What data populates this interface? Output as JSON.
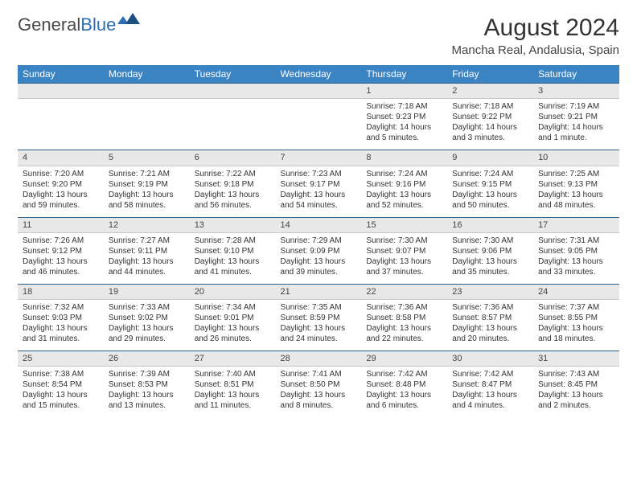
{
  "logo": {
    "general": "General",
    "blue": "Blue"
  },
  "title": "August 2024",
  "location": "Mancha Real, Andalusia, Spain",
  "header_color": "#3b84c4",
  "daynum_bg": "#e8e8e8",
  "row_border": "#2c5e8a",
  "weekdays": [
    "Sunday",
    "Monday",
    "Tuesday",
    "Wednesday",
    "Thursday",
    "Friday",
    "Saturday"
  ],
  "weeks": [
    [
      null,
      null,
      null,
      null,
      {
        "num": "1",
        "sunrise": "Sunrise: 7:18 AM",
        "sunset": "Sunset: 9:23 PM",
        "daylight": "Daylight: 14 hours and 5 minutes."
      },
      {
        "num": "2",
        "sunrise": "Sunrise: 7:18 AM",
        "sunset": "Sunset: 9:22 PM",
        "daylight": "Daylight: 14 hours and 3 minutes."
      },
      {
        "num": "3",
        "sunrise": "Sunrise: 7:19 AM",
        "sunset": "Sunset: 9:21 PM",
        "daylight": "Daylight: 14 hours and 1 minute."
      }
    ],
    [
      {
        "num": "4",
        "sunrise": "Sunrise: 7:20 AM",
        "sunset": "Sunset: 9:20 PM",
        "daylight": "Daylight: 13 hours and 59 minutes."
      },
      {
        "num": "5",
        "sunrise": "Sunrise: 7:21 AM",
        "sunset": "Sunset: 9:19 PM",
        "daylight": "Daylight: 13 hours and 58 minutes."
      },
      {
        "num": "6",
        "sunrise": "Sunrise: 7:22 AM",
        "sunset": "Sunset: 9:18 PM",
        "daylight": "Daylight: 13 hours and 56 minutes."
      },
      {
        "num": "7",
        "sunrise": "Sunrise: 7:23 AM",
        "sunset": "Sunset: 9:17 PM",
        "daylight": "Daylight: 13 hours and 54 minutes."
      },
      {
        "num": "8",
        "sunrise": "Sunrise: 7:24 AM",
        "sunset": "Sunset: 9:16 PM",
        "daylight": "Daylight: 13 hours and 52 minutes."
      },
      {
        "num": "9",
        "sunrise": "Sunrise: 7:24 AM",
        "sunset": "Sunset: 9:15 PM",
        "daylight": "Daylight: 13 hours and 50 minutes."
      },
      {
        "num": "10",
        "sunrise": "Sunrise: 7:25 AM",
        "sunset": "Sunset: 9:13 PM",
        "daylight": "Daylight: 13 hours and 48 minutes."
      }
    ],
    [
      {
        "num": "11",
        "sunrise": "Sunrise: 7:26 AM",
        "sunset": "Sunset: 9:12 PM",
        "daylight": "Daylight: 13 hours and 46 minutes."
      },
      {
        "num": "12",
        "sunrise": "Sunrise: 7:27 AM",
        "sunset": "Sunset: 9:11 PM",
        "daylight": "Daylight: 13 hours and 44 minutes."
      },
      {
        "num": "13",
        "sunrise": "Sunrise: 7:28 AM",
        "sunset": "Sunset: 9:10 PM",
        "daylight": "Daylight: 13 hours and 41 minutes."
      },
      {
        "num": "14",
        "sunrise": "Sunrise: 7:29 AM",
        "sunset": "Sunset: 9:09 PM",
        "daylight": "Daylight: 13 hours and 39 minutes."
      },
      {
        "num": "15",
        "sunrise": "Sunrise: 7:30 AM",
        "sunset": "Sunset: 9:07 PM",
        "daylight": "Daylight: 13 hours and 37 minutes."
      },
      {
        "num": "16",
        "sunrise": "Sunrise: 7:30 AM",
        "sunset": "Sunset: 9:06 PM",
        "daylight": "Daylight: 13 hours and 35 minutes."
      },
      {
        "num": "17",
        "sunrise": "Sunrise: 7:31 AM",
        "sunset": "Sunset: 9:05 PM",
        "daylight": "Daylight: 13 hours and 33 minutes."
      }
    ],
    [
      {
        "num": "18",
        "sunrise": "Sunrise: 7:32 AM",
        "sunset": "Sunset: 9:03 PM",
        "daylight": "Daylight: 13 hours and 31 minutes."
      },
      {
        "num": "19",
        "sunrise": "Sunrise: 7:33 AM",
        "sunset": "Sunset: 9:02 PM",
        "daylight": "Daylight: 13 hours and 29 minutes."
      },
      {
        "num": "20",
        "sunrise": "Sunrise: 7:34 AM",
        "sunset": "Sunset: 9:01 PM",
        "daylight": "Daylight: 13 hours and 26 minutes."
      },
      {
        "num": "21",
        "sunrise": "Sunrise: 7:35 AM",
        "sunset": "Sunset: 8:59 PM",
        "daylight": "Daylight: 13 hours and 24 minutes."
      },
      {
        "num": "22",
        "sunrise": "Sunrise: 7:36 AM",
        "sunset": "Sunset: 8:58 PM",
        "daylight": "Daylight: 13 hours and 22 minutes."
      },
      {
        "num": "23",
        "sunrise": "Sunrise: 7:36 AM",
        "sunset": "Sunset: 8:57 PM",
        "daylight": "Daylight: 13 hours and 20 minutes."
      },
      {
        "num": "24",
        "sunrise": "Sunrise: 7:37 AM",
        "sunset": "Sunset: 8:55 PM",
        "daylight": "Daylight: 13 hours and 18 minutes."
      }
    ],
    [
      {
        "num": "25",
        "sunrise": "Sunrise: 7:38 AM",
        "sunset": "Sunset: 8:54 PM",
        "daylight": "Daylight: 13 hours and 15 minutes."
      },
      {
        "num": "26",
        "sunrise": "Sunrise: 7:39 AM",
        "sunset": "Sunset: 8:53 PM",
        "daylight": "Daylight: 13 hours and 13 minutes."
      },
      {
        "num": "27",
        "sunrise": "Sunrise: 7:40 AM",
        "sunset": "Sunset: 8:51 PM",
        "daylight": "Daylight: 13 hours and 11 minutes."
      },
      {
        "num": "28",
        "sunrise": "Sunrise: 7:41 AM",
        "sunset": "Sunset: 8:50 PM",
        "daylight": "Daylight: 13 hours and 8 minutes."
      },
      {
        "num": "29",
        "sunrise": "Sunrise: 7:42 AM",
        "sunset": "Sunset: 8:48 PM",
        "daylight": "Daylight: 13 hours and 6 minutes."
      },
      {
        "num": "30",
        "sunrise": "Sunrise: 7:42 AM",
        "sunset": "Sunset: 8:47 PM",
        "daylight": "Daylight: 13 hours and 4 minutes."
      },
      {
        "num": "31",
        "sunrise": "Sunrise: 7:43 AM",
        "sunset": "Sunset: 8:45 PM",
        "daylight": "Daylight: 13 hours and 2 minutes."
      }
    ]
  ]
}
